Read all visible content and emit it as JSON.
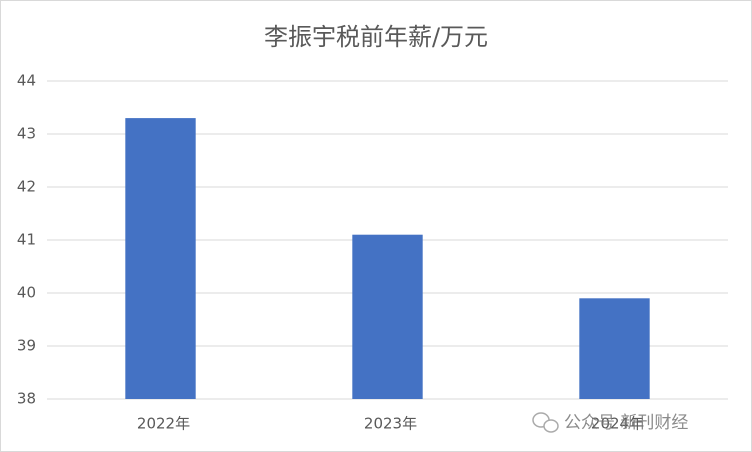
{
  "chart_data": {
    "type": "bar",
    "title": "李振宇税前年薪/万元",
    "categories": [
      "2022年",
      "2023年",
      "2024年"
    ],
    "values": [
      43.3,
      41.1,
      39.9
    ],
    "color": "#4472c4",
    "ylim": [
      38,
      44
    ],
    "yticks": [
      38,
      39,
      40,
      41,
      42,
      43,
      44
    ],
    "grid": true,
    "watermark": "公众号 新刊财经"
  }
}
